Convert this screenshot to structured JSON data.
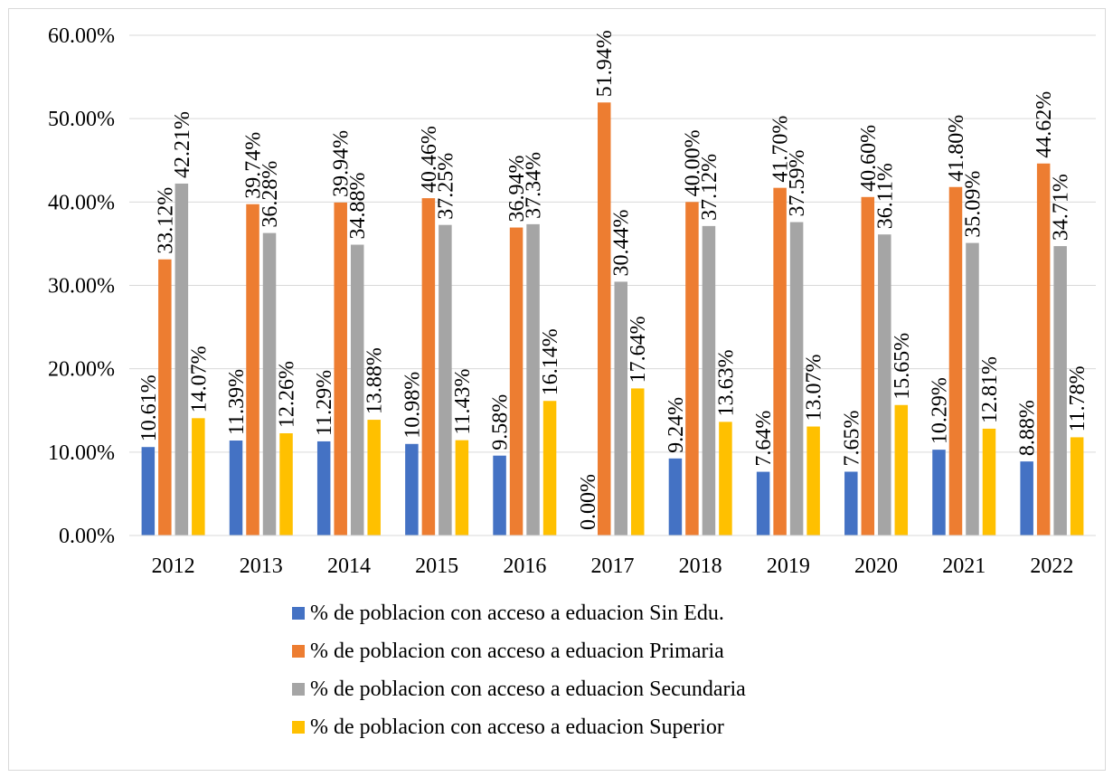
{
  "chart_data": {
    "type": "bar",
    "title": "",
    "xlabel": "",
    "ylabel": "",
    "ylim": [
      0,
      60
    ],
    "y_ticks": [
      "0.00%",
      "10.00%",
      "20.00%",
      "30.00%",
      "40.00%",
      "50.00%",
      "60.00%"
    ],
    "grid": true,
    "legend_position": "bottom",
    "categories": [
      "2012",
      "2013",
      "2014",
      "2015",
      "2016",
      "2017",
      "2018",
      "2019",
      "2020",
      "2021",
      "2022"
    ],
    "series": [
      {
        "name": "% de poblacion con acceso a eduacion Sin Edu.",
        "color": "#4472C4",
        "values": [
          10.61,
          11.39,
          11.29,
          10.98,
          9.58,
          0.0,
          9.24,
          7.64,
          7.65,
          10.29,
          8.88
        ],
        "labels": [
          "10.61%",
          "11.39%",
          "11.29%",
          "10.98%",
          "9.58%",
          "0.00%",
          "9.24%",
          "7.64%",
          "7.65%",
          "10.29%",
          "8.88%"
        ]
      },
      {
        "name": "% de poblacion con acceso a eduacion Primaria",
        "color": "#ED7D31",
        "values": [
          33.12,
          39.74,
          39.94,
          40.46,
          36.94,
          51.94,
          40.0,
          41.7,
          40.6,
          41.8,
          44.62
        ],
        "labels": [
          "33.12%",
          "39.74%",
          "39.94%",
          "40.46%",
          "36.94%",
          "51.94%",
          "40.00%",
          "41.70%",
          "40.60%",
          "41.80%",
          "44.62%"
        ]
      },
      {
        "name": "% de poblacion con acceso a eduacion Secundaria",
        "color": "#A5A5A5",
        "values": [
          42.21,
          36.28,
          34.88,
          37.25,
          37.34,
          30.44,
          37.12,
          37.59,
          36.11,
          35.09,
          34.71
        ],
        "labels": [
          "42.21%",
          "36.28%",
          "34.88%",
          "37.25%",
          "37.34%",
          "30.44%",
          "37.12%",
          "37.59%",
          "36.11%",
          "35.09%",
          "34.71%"
        ]
      },
      {
        "name": "% de poblacion con acceso a eduacion Superior",
        "color": "#FFC000",
        "values": [
          14.07,
          12.26,
          13.88,
          11.43,
          16.14,
          17.64,
          13.63,
          13.07,
          15.65,
          12.81,
          11.78
        ],
        "labels": [
          "14.07%",
          "12.26%",
          "13.88%",
          "11.43%",
          "16.14%",
          "17.64%",
          "13.63%",
          "13.07%",
          "15.65%",
          "12.81%",
          "11.78%"
        ]
      }
    ]
  }
}
